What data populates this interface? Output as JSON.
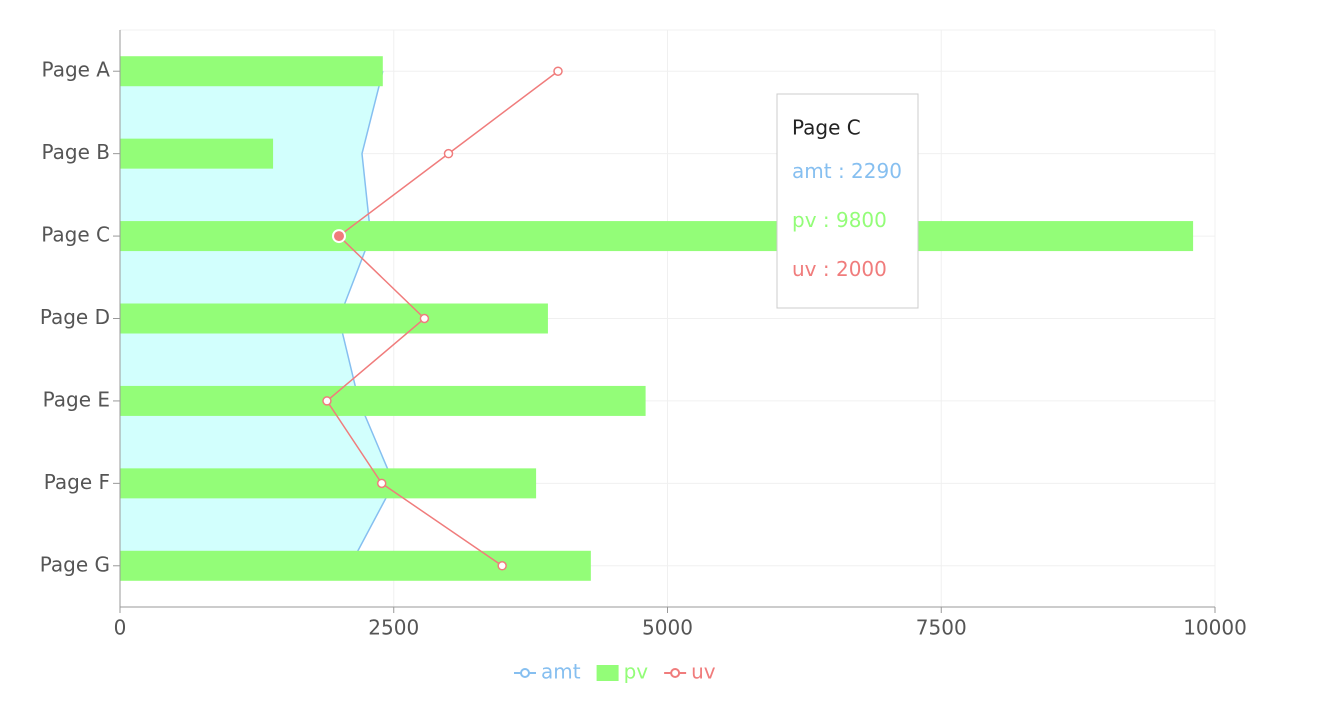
{
  "chart_data": {
    "type": "composed",
    "layout": "vertical",
    "categories": [
      "Page A",
      "Page B",
      "Page C",
      "Page D",
      "Page E",
      "Page F",
      "Page G"
    ],
    "series": [
      {
        "name": "amt",
        "type": "area",
        "color": "#86bff0",
        "fill": "#d2fffd",
        "values": [
          2400,
          2210,
          2290,
          2000,
          2181,
          2500,
          2100
        ]
      },
      {
        "name": "pv",
        "type": "bar",
        "color": "#93fd78",
        "values": [
          2400,
          1398,
          9800,
          3908,
          4800,
          3800,
          4300
        ]
      },
      {
        "name": "uv",
        "type": "line",
        "color": "#f07c7c",
        "values": [
          4000,
          3000,
          2000,
          2780,
          1890,
          2390,
          3490
        ]
      }
    ],
    "xlim": [
      0,
      10000
    ],
    "xticks": [
      0,
      2500,
      5000,
      7500,
      10000
    ],
    "grid": true,
    "legend": "bottom",
    "tooltip": {
      "active_index": 2,
      "separator": " : "
    }
  }
}
